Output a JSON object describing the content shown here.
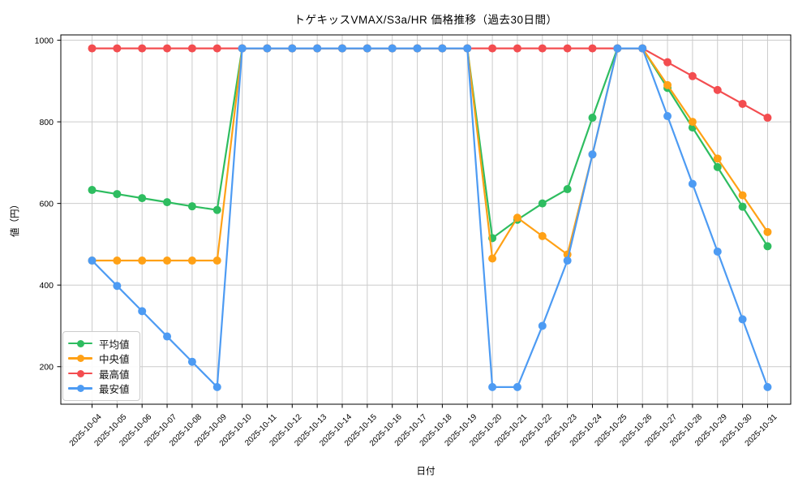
{
  "chart_data": {
    "type": "line",
    "title": "トゲキッスVMAX/S3a/HR 価格推移（過去30日間）",
    "xlabel": "日付",
    "ylabel": "値（円）",
    "x": [
      "2025-10-04",
      "2025-10-05",
      "2025-10-06",
      "2025-10-07",
      "2025-10-08",
      "2025-10-09",
      "2025-10-10",
      "2025-10-11",
      "2025-10-12",
      "2025-10-13",
      "2025-10-14",
      "2025-10-15",
      "2025-10-16",
      "2025-10-17",
      "2025-10-18",
      "2025-10-19",
      "2025-10-20",
      "2025-10-21",
      "2025-10-22",
      "2025-10-23",
      "2025-10-24",
      "2025-10-25",
      "2025-10-26",
      "2025-10-27",
      "2025-10-28",
      "2025-10-29",
      "2025-10-30",
      "2025-10-31"
    ],
    "series": [
      {
        "key": "average",
        "name": "平均値",
        "color": "#2ebd60",
        "values": [
          633,
          623,
          613,
          603,
          593,
          584,
          980,
          980,
          980,
          980,
          980,
          980,
          980,
          980,
          980,
          980,
          515,
          560,
          600,
          635,
          810,
          980,
          980,
          883,
          786,
          689,
          592,
          495
        ]
      },
      {
        "key": "median",
        "name": "中央値",
        "color": "#ffa116",
        "values": [
          460,
          460,
          460,
          460,
          460,
          460,
          980,
          980,
          980,
          980,
          980,
          980,
          980,
          980,
          980,
          980,
          465,
          565,
          520,
          475,
          720,
          980,
          980,
          890,
          800,
          710,
          620,
          530
        ]
      },
      {
        "key": "max",
        "name": "最高値",
        "color": "#f34d50",
        "values": [
          980,
          980,
          980,
          980,
          980,
          980,
          980,
          980,
          980,
          980,
          980,
          980,
          980,
          980,
          980,
          980,
          980,
          980,
          980,
          980,
          980,
          980,
          980,
          946,
          912,
          878,
          844,
          810
        ]
      },
      {
        "key": "min",
        "name": "最安値",
        "color": "#4d9bf3",
        "values": [
          460,
          398,
          336,
          274,
          212,
          150,
          980,
          980,
          980,
          980,
          980,
          980,
          980,
          980,
          980,
          980,
          150,
          150,
          300,
          460,
          720,
          980,
          980,
          814,
          648,
          482,
          316,
          150
        ]
      }
    ],
    "yticks": [
      200,
      400,
      600,
      800,
      1000
    ],
    "ylim": [
      108,
      1013
    ],
    "grid": true,
    "grid_color": "#cccccc",
    "legend_position": "lower left",
    "legend_entries": [
      "平均値",
      "中央値",
      "最高値",
      "最安値"
    ]
  }
}
